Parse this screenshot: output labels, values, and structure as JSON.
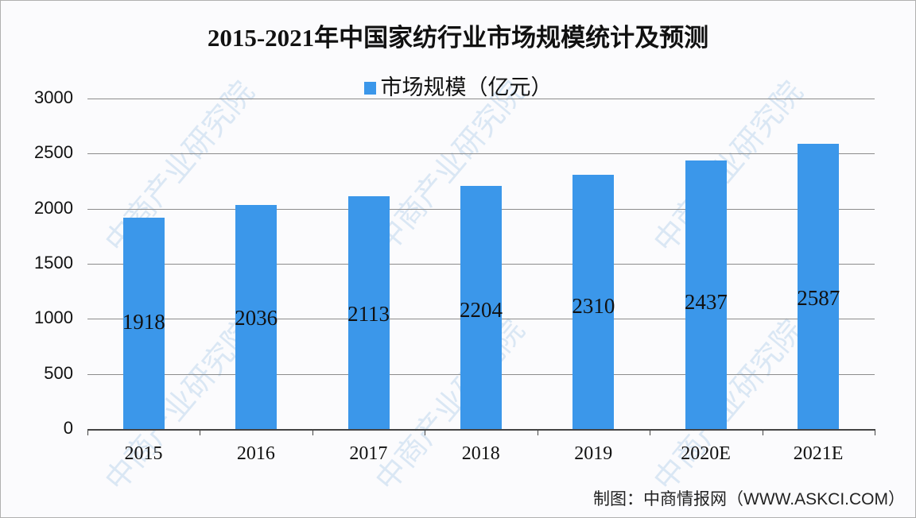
{
  "chart_data": {
    "type": "bar",
    "title": "2015-2021年中国家纺行业市场规模统计及预测",
    "categories": [
      "2015",
      "2016",
      "2017",
      "2018",
      "2019",
      "2020E",
      "2021E"
    ],
    "series": [
      {
        "name": "市场规模（亿元）",
        "values": [
          1918,
          2036,
          2113,
          2204,
          2310,
          2437,
          2587
        ],
        "color": "#3b97ea"
      }
    ],
    "xlabel": "",
    "ylabel": "",
    "ylim": [
      0,
      3000
    ],
    "yticks": [
      "3000",
      "2500",
      "2000",
      "1500",
      "1000",
      "500",
      "0"
    ],
    "grid": true,
    "legend_position": "top",
    "data_labels": [
      "1918",
      "2036",
      "2113",
      "2204",
      "2310",
      "2437",
      "2587"
    ]
  },
  "source": "制图：中商情报网（WWW.ASKCI.COM）",
  "watermark": "中商产业研究院"
}
